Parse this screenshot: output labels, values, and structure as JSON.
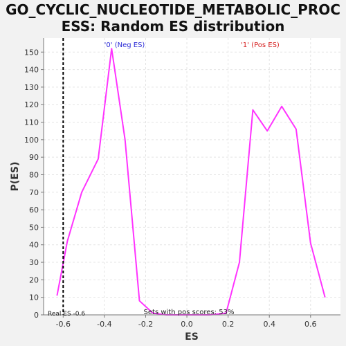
{
  "title_line1": "GO_CYCLIC_NUCLEOTIDE_METABOLIC_PROC",
  "title_line2": "ESS: Random ES distribution",
  "chart_data": {
    "type": "line",
    "xlabel": "ES",
    "ylabel": "P(ES)",
    "xlim": [
      -0.695,
      0.745
    ],
    "ylim": [
      0,
      158
    ],
    "x_ticks": [
      -0.6,
      -0.4,
      -0.2,
      0.0,
      0.2,
      0.4,
      0.6
    ],
    "x_tick_labels": [
      "-0.6",
      "-0.4",
      "-0.2",
      "0.0",
      "0.2",
      "0.4",
      "0.6"
    ],
    "y_ticks": [
      0,
      10,
      20,
      30,
      40,
      50,
      60,
      70,
      80,
      90,
      100,
      110,
      120,
      130,
      140,
      150
    ],
    "grid": true,
    "line_color": "#ff33ff",
    "series": [
      {
        "x": [
          -0.63,
          -0.58,
          -0.51,
          -0.43,
          -0.365,
          -0.3,
          -0.23,
          -0.165,
          -0.1,
          -0.03,
          0.04,
          0.11,
          0.19,
          0.255,
          0.32,
          0.39,
          0.46,
          0.53,
          0.6,
          0.67
        ],
        "values": [
          11,
          42,
          70,
          89,
          152,
          100,
          8,
          1,
          0,
          0,
          0,
          0,
          1,
          30,
          117,
          105,
          119,
          106,
          41,
          10
        ]
      }
    ],
    "real_es": -0.6,
    "real_es_label": "Real ES -0.6",
    "neg_label": "'0' (Neg ES)",
    "pos_label": "'1' (Pos ES)",
    "neg_color": "#2b2bd6",
    "pos_color": "#d62020",
    "footer_text": "Sets with pos scores: 53%"
  }
}
